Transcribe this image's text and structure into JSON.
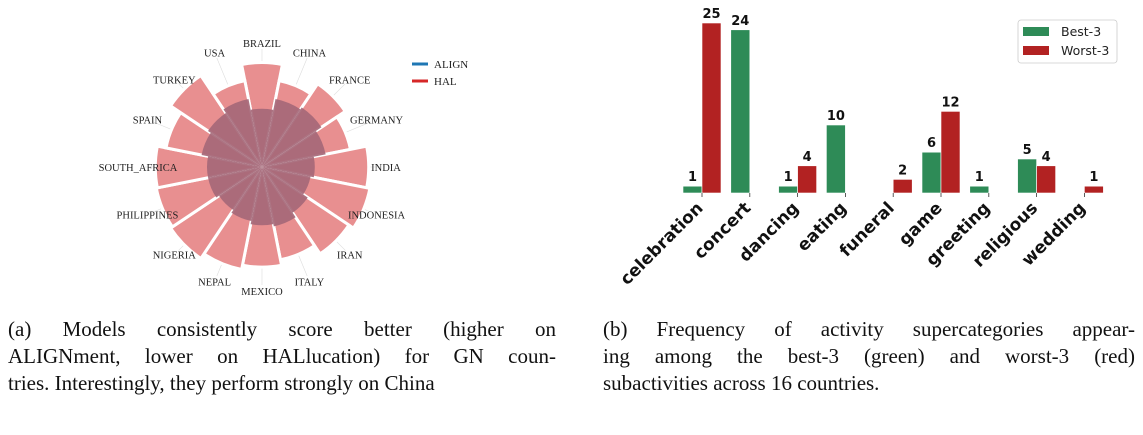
{
  "chart_data": [
    {
      "type": "polar-bar",
      "categories": [
        "BRAZIL",
        "CHINA",
        "FRANCE",
        "GERMANY",
        "INDIA",
        "INDONESIA",
        "IRAN",
        "ITALY",
        "MEXICO",
        "NEPAL",
        "NIGERIA",
        "PHILIPPINES",
        "SOUTH_AFRICA",
        "SPAIN",
        "TURKEY",
        "USA"
      ],
      "series": [
        {
          "name": "ALIGN",
          "color": "#1f77b4",
          "values": [
            0.53,
            0.63,
            0.65,
            0.59,
            0.48,
            0.45,
            0.5,
            0.55,
            0.53,
            0.5,
            0.47,
            0.5,
            0.5,
            0.56,
            0.59,
            0.63
          ]
        },
        {
          "name": "HAL",
          "color": "#d62728",
          "values": [
            0.95,
            0.8,
            0.91,
            0.82,
            0.97,
            1.0,
            0.95,
            0.86,
            0.91,
            0.95,
            1.0,
            0.98,
            0.97,
            0.89,
            1.0,
            0.8
          ]
        }
      ],
      "grid": false,
      "legend": "right",
      "caption": [
        "(a) Models consistently score better (higher on",
        "ALIGNment, lower on HALlucation) for GN coun-",
        "tries. Interestingly, they perform strongly on China"
      ]
    },
    {
      "type": "bar",
      "categories": [
        "celebration",
        "concert",
        "dancing",
        "eating",
        "funeral",
        "game",
        "greeting",
        "religious",
        "wedding"
      ],
      "series": [
        {
          "name": "Best-3",
          "color": "#2e8b57",
          "values": [
            1,
            24,
            1,
            10,
            0,
            6,
            1,
            5,
            0
          ]
        },
        {
          "name": "Worst-3",
          "color": "#b22222",
          "values": [
            25,
            0,
            4,
            0,
            2,
            12,
            0,
            4,
            1
          ]
        }
      ],
      "ylim": [
        0,
        25
      ],
      "grid": false,
      "legend": "top-right",
      "caption": [
        "(b) Frequency of activity supercategories appear-",
        "ing among the best-3 (green) and worst-3 (red)",
        "subactivities across 16 countries."
      ]
    }
  ]
}
